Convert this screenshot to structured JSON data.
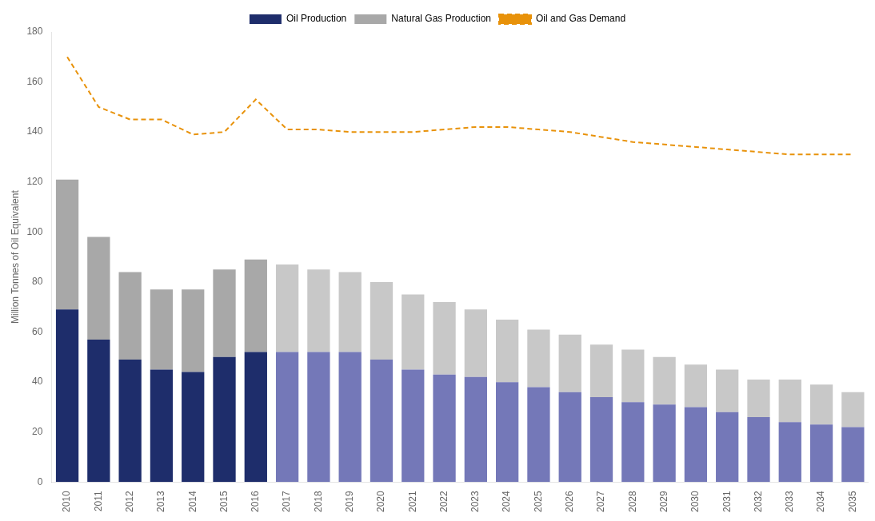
{
  "chart_data": {
    "type": "bar",
    "stacked": true,
    "categories": [
      "2010",
      "2011",
      "2012",
      "2013",
      "2014",
      "2015",
      "2016",
      "2017",
      "2018",
      "2019",
      "2020",
      "2021",
      "2022",
      "2023",
      "2024",
      "2025",
      "2026",
      "2027",
      "2028",
      "2029",
      "2030",
      "2031",
      "2032",
      "2033",
      "2034",
      "2035"
    ],
    "series": [
      {
        "name": "Oil Production",
        "type": "bar",
        "colors": [
          "#1e2d6b",
          "#1e2d6b",
          "#1e2d6b",
          "#1e2d6b",
          "#1e2d6b",
          "#1e2d6b",
          "#1e2d6b",
          "#7478b8",
          "#7478b8",
          "#7478b8",
          "#7478b8",
          "#7478b8",
          "#7478b8",
          "#7478b8",
          "#7478b8",
          "#7478b8",
          "#7478b8",
          "#7478b8",
          "#7478b8",
          "#7478b8",
          "#7478b8",
          "#7478b8",
          "#7478b8",
          "#7478b8",
          "#7478b8",
          "#7478b8"
        ],
        "values": [
          69,
          57,
          49,
          45,
          44,
          50,
          52,
          52,
          52,
          52,
          49,
          45,
          43,
          42,
          40,
          38,
          36,
          34,
          32,
          31,
          30,
          28,
          26,
          24,
          23,
          22
        ]
      },
      {
        "name": "Natural Gas Production",
        "type": "bar",
        "colors": [
          "#a8a8a8",
          "#a8a8a8",
          "#a8a8a8",
          "#a8a8a8",
          "#a8a8a8",
          "#a8a8a8",
          "#a8a8a8",
          "#c8c8c8",
          "#c8c8c8",
          "#c8c8c8",
          "#c8c8c8",
          "#c8c8c8",
          "#c8c8c8",
          "#c8c8c8",
          "#c8c8c8",
          "#c8c8c8",
          "#c8c8c8",
          "#c8c8c8",
          "#c8c8c8",
          "#c8c8c8",
          "#c8c8c8",
          "#c8c8c8",
          "#c8c8c8",
          "#c8c8c8",
          "#c8c8c8",
          "#c8c8c8"
        ],
        "values": [
          52,
          41,
          35,
          32,
          33,
          35,
          37,
          35,
          33,
          32,
          31,
          30,
          29,
          27,
          25,
          23,
          23,
          21,
          21,
          19,
          17,
          17,
          15,
          17,
          16,
          14
        ]
      },
      {
        "name": "Oil and Gas Demand",
        "type": "line",
        "color": "#e8920a",
        "line_style": "dashed",
        "values": [
          170,
          150,
          145,
          145,
          139,
          140,
          153,
          141,
          141,
          140,
          140,
          140,
          141,
          142,
          142,
          141,
          140,
          138,
          136,
          135,
          134,
          133,
          132,
          131,
          131,
          131
        ]
      }
    ],
    "ylabel": "Million Tonnes of Oil Equivalent",
    "ylim": [
      0,
      180
    ],
    "yticks": [
      0,
      20,
      40,
      60,
      80,
      100,
      120,
      140,
      160,
      180
    ],
    "grid": false,
    "legend": "top"
  }
}
